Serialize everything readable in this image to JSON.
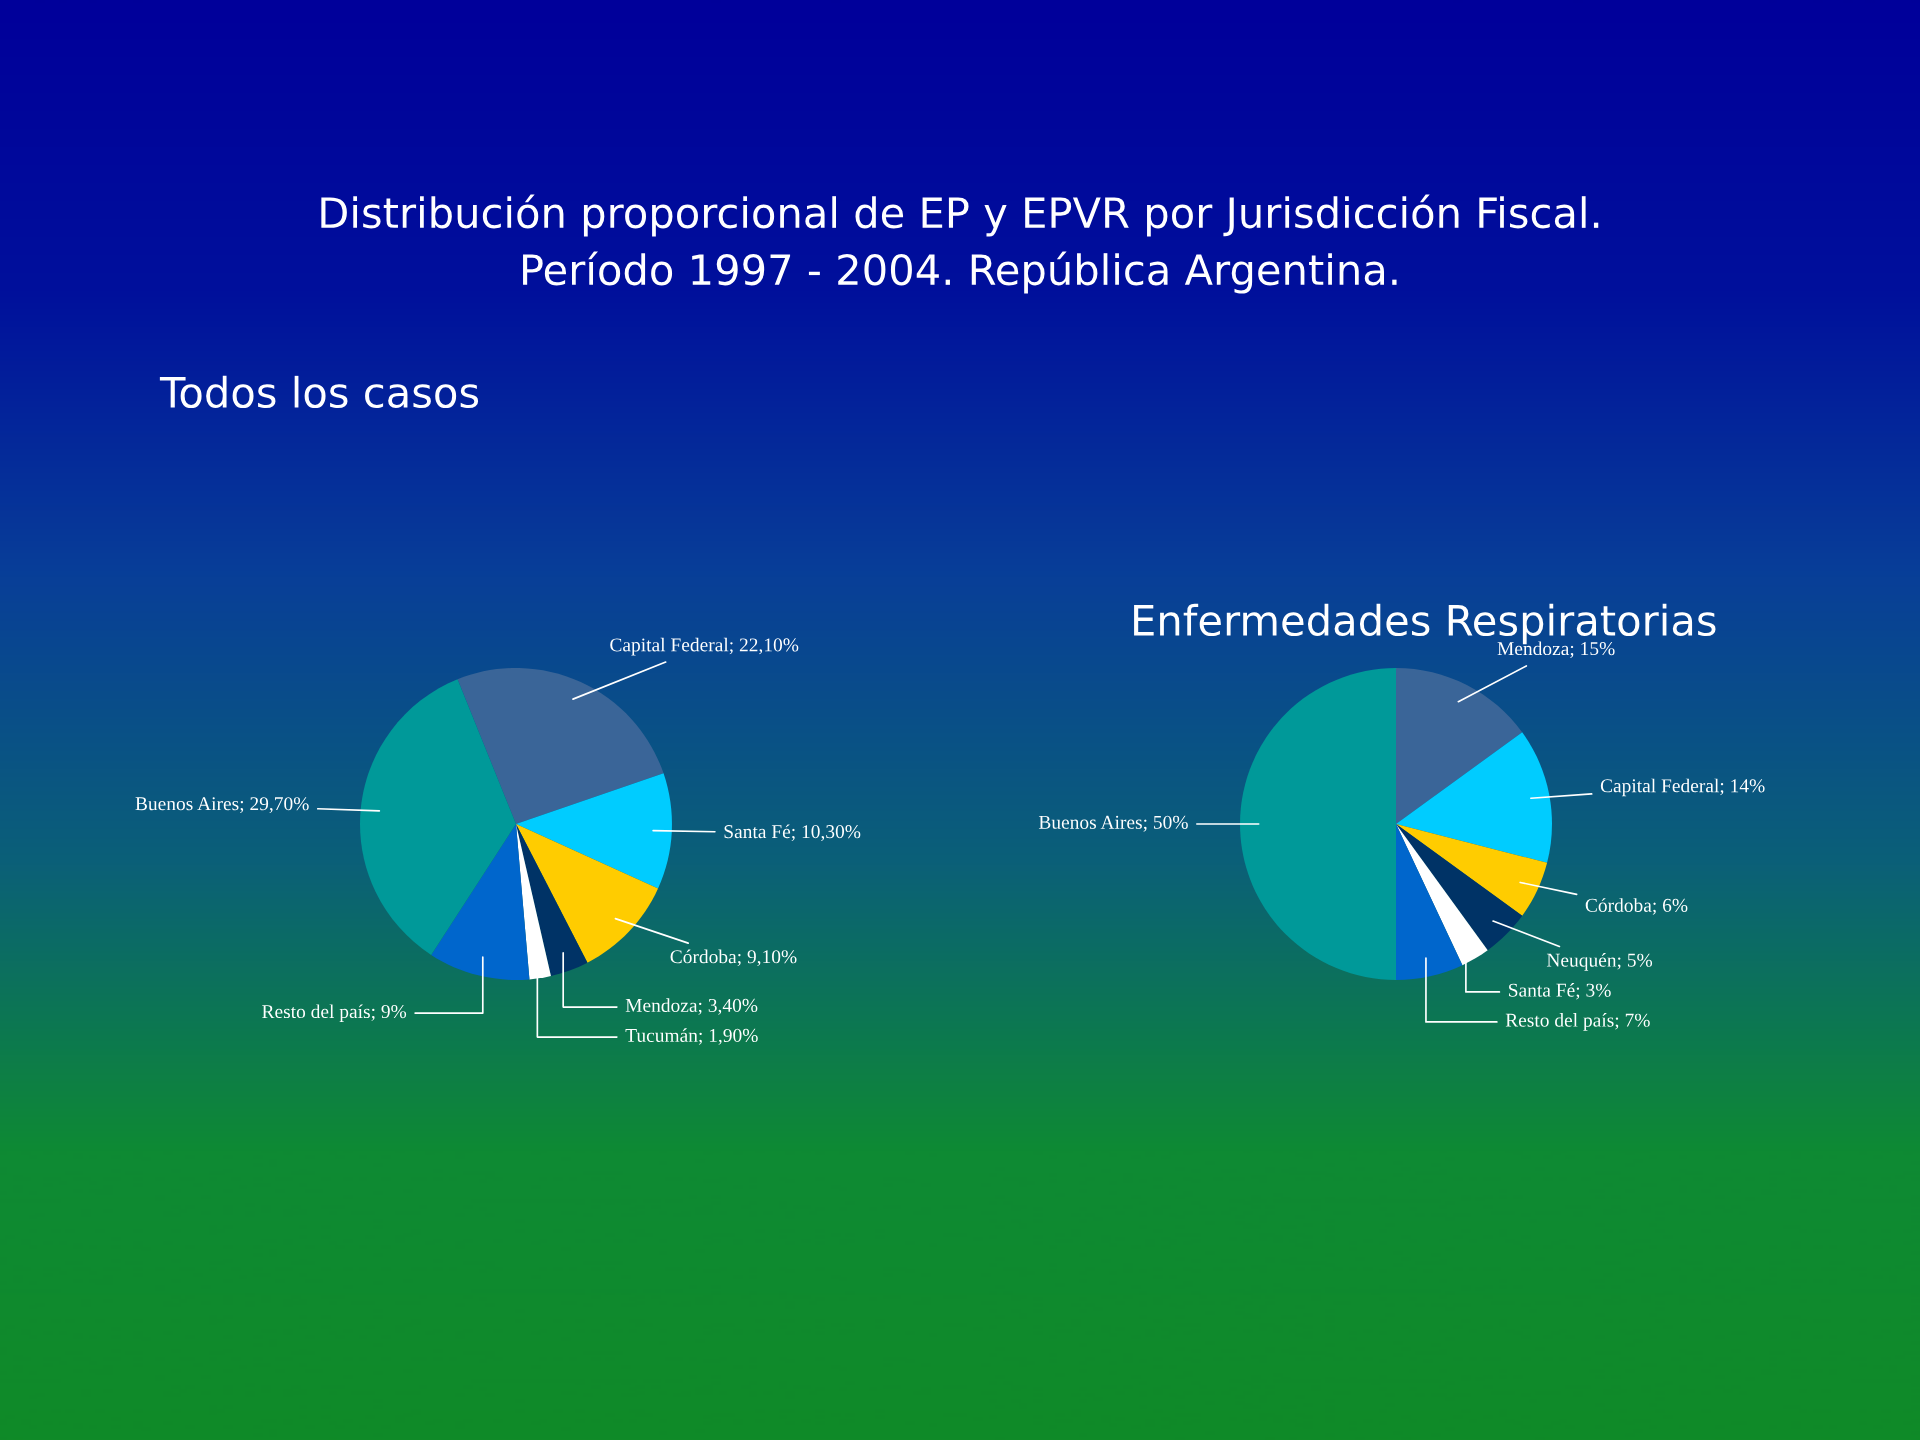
{
  "chart_data": [
    {
      "type": "pie",
      "title": "Distribución proporcional de EP y EPVR por Jurisdicción Fiscal.\nPeríodo 1997 - 2004. República Argentina.",
      "subtitle": "Todos los casos",
      "categories": [
        "Capital Federal",
        "Santa Fé",
        "Córdoba",
        "Mendoza",
        "Tucumán",
        "Resto del país",
        "Buenos Aires"
      ],
      "values": [
        22.1,
        10.3,
        9.1,
        3.4,
        1.9,
        9,
        29.7
      ],
      "value_labels": [
        "22,10%",
        "10,30%",
        "9,10%",
        "3,40%",
        "1,90%",
        "9%",
        "29,70%"
      ],
      "colors": [
        "#3a6598",
        "#00ccff",
        "#ffcc00",
        "#003366",
        "#ffffff",
        "#0066cc",
        "#009999"
      ]
    },
    {
      "type": "pie",
      "title": "Enfermedades Respiratorias",
      "categories": [
        "Mendoza",
        "Capital Federal",
        "Córdoba",
        "Neuquén",
        "Santa Fé",
        "Resto del país",
        "Buenos Aires"
      ],
      "values": [
        15,
        14,
        6,
        5,
        3,
        7,
        50
      ],
      "value_labels": [
        "15%",
        "14%",
        "6%",
        "5%",
        "3%",
        "7%",
        "50%"
      ],
      "colors": [
        "#3a6598",
        "#00ccff",
        "#ffcc00",
        "#003366",
        "#ffffff",
        "#0066cc",
        "#009999"
      ]
    }
  ]
}
